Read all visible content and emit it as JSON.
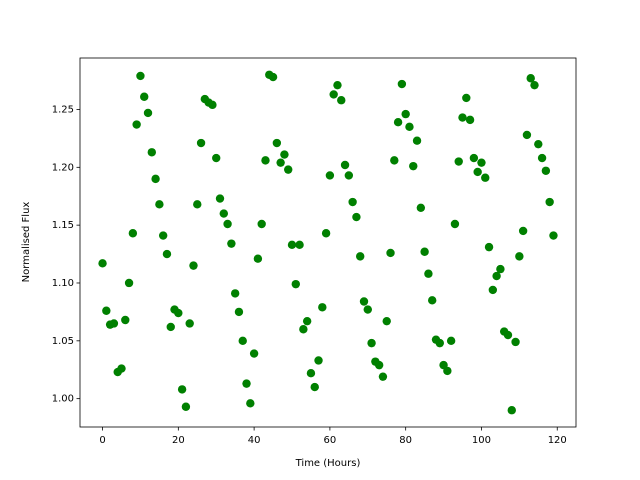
{
  "chart_data": {
    "type": "scatter",
    "x_label": "Time (Hours)",
    "y_label": "Normalised Flux",
    "color": "#008000",
    "x": [
      0,
      1,
      2,
      3,
      4,
      5,
      6,
      7,
      8,
      9,
      10,
      11,
      12,
      13,
      14,
      15,
      16,
      17,
      18,
      19,
      20,
      21,
      22,
      23,
      24,
      25,
      26,
      27,
      28,
      29,
      30,
      31,
      32,
      33,
      34,
      35,
      36,
      37,
      38,
      39,
      40,
      41,
      42,
      43,
      44,
      45,
      46,
      47,
      48,
      49,
      50,
      51,
      52,
      53,
      54,
      55,
      56,
      57,
      58,
      59,
      60,
      61,
      62,
      63,
      64,
      65,
      66,
      67,
      68,
      69,
      70,
      71,
      72,
      73,
      74,
      75,
      76,
      77,
      78,
      79,
      80,
      81,
      82,
      83,
      84,
      85,
      86,
      87,
      88,
      89,
      90,
      91,
      92,
      93,
      94,
      95,
      96,
      97,
      98,
      99,
      100,
      101,
      102,
      103,
      104,
      105,
      106,
      107,
      108,
      109,
      110,
      111,
      112,
      113,
      114,
      115,
      116,
      117,
      118,
      119
    ],
    "values": [
      1.117,
      1.076,
      1.064,
      1.065,
      1.023,
      1.026,
      1.068,
      1.1,
      1.143,
      1.237,
      1.279,
      1.261,
      1.247,
      1.213,
      1.19,
      1.168,
      1.141,
      1.125,
      1.062,
      1.077,
      1.074,
      1.008,
      0.993,
      1.065,
      1.115,
      1.168,
      1.221,
      1.259,
      1.256,
      1.254,
      1.208,
      1.173,
      1.16,
      1.151,
      1.134,
      1.091,
      1.075,
      1.05,
      1.013,
      0.996,
      1.039,
      1.121,
      1.151,
      1.206,
      1.28,
      1.278,
      1.221,
      1.204,
      1.211,
      1.198,
      1.133,
      1.099,
      1.133,
      1.06,
      1.067,
      1.022,
      1.01,
      1.033,
      1.079,
      1.143,
      1.193,
      1.263,
      1.271,
      1.258,
      1.202,
      1.193,
      1.17,
      1.157,
      1.123,
      1.084,
      1.077,
      1.048,
      1.032,
      1.029,
      1.019,
      1.067,
      1.126,
      1.206,
      1.239,
      1.272,
      1.246,
      1.235,
      1.201,
      1.223,
      1.165,
      1.127,
      1.108,
      1.085,
      1.051,
      1.048,
      1.029,
      1.024,
      1.05,
      1.151,
      1.205,
      1.243,
      1.26,
      1.241,
      1.208,
      1.196,
      1.204,
      1.191,
      1.131,
      1.094,
      1.106,
      1.112,
      1.058,
      1.055,
      0.99,
      1.049,
      1.123,
      1.145,
      1.228,
      1.277,
      1.271,
      1.22,
      1.208,
      1.197,
      1.17,
      1.141
    ],
    "xlim": [
      -5.95,
      124.95
    ],
    "ylim": [
      0.9755,
      1.2945
    ],
    "xticks": [
      0,
      20,
      40,
      60,
      80,
      100,
      120
    ],
    "yticks": [
      {
        "value": 1.0,
        "label": "1.00"
      },
      {
        "value": 1.05,
        "label": "1.05"
      },
      {
        "value": 1.1,
        "label": "1.10"
      },
      {
        "value": 1.15,
        "label": "1.15"
      },
      {
        "value": 1.2,
        "label": "1.20"
      },
      {
        "value": 1.25,
        "label": "1.25"
      }
    ]
  }
}
